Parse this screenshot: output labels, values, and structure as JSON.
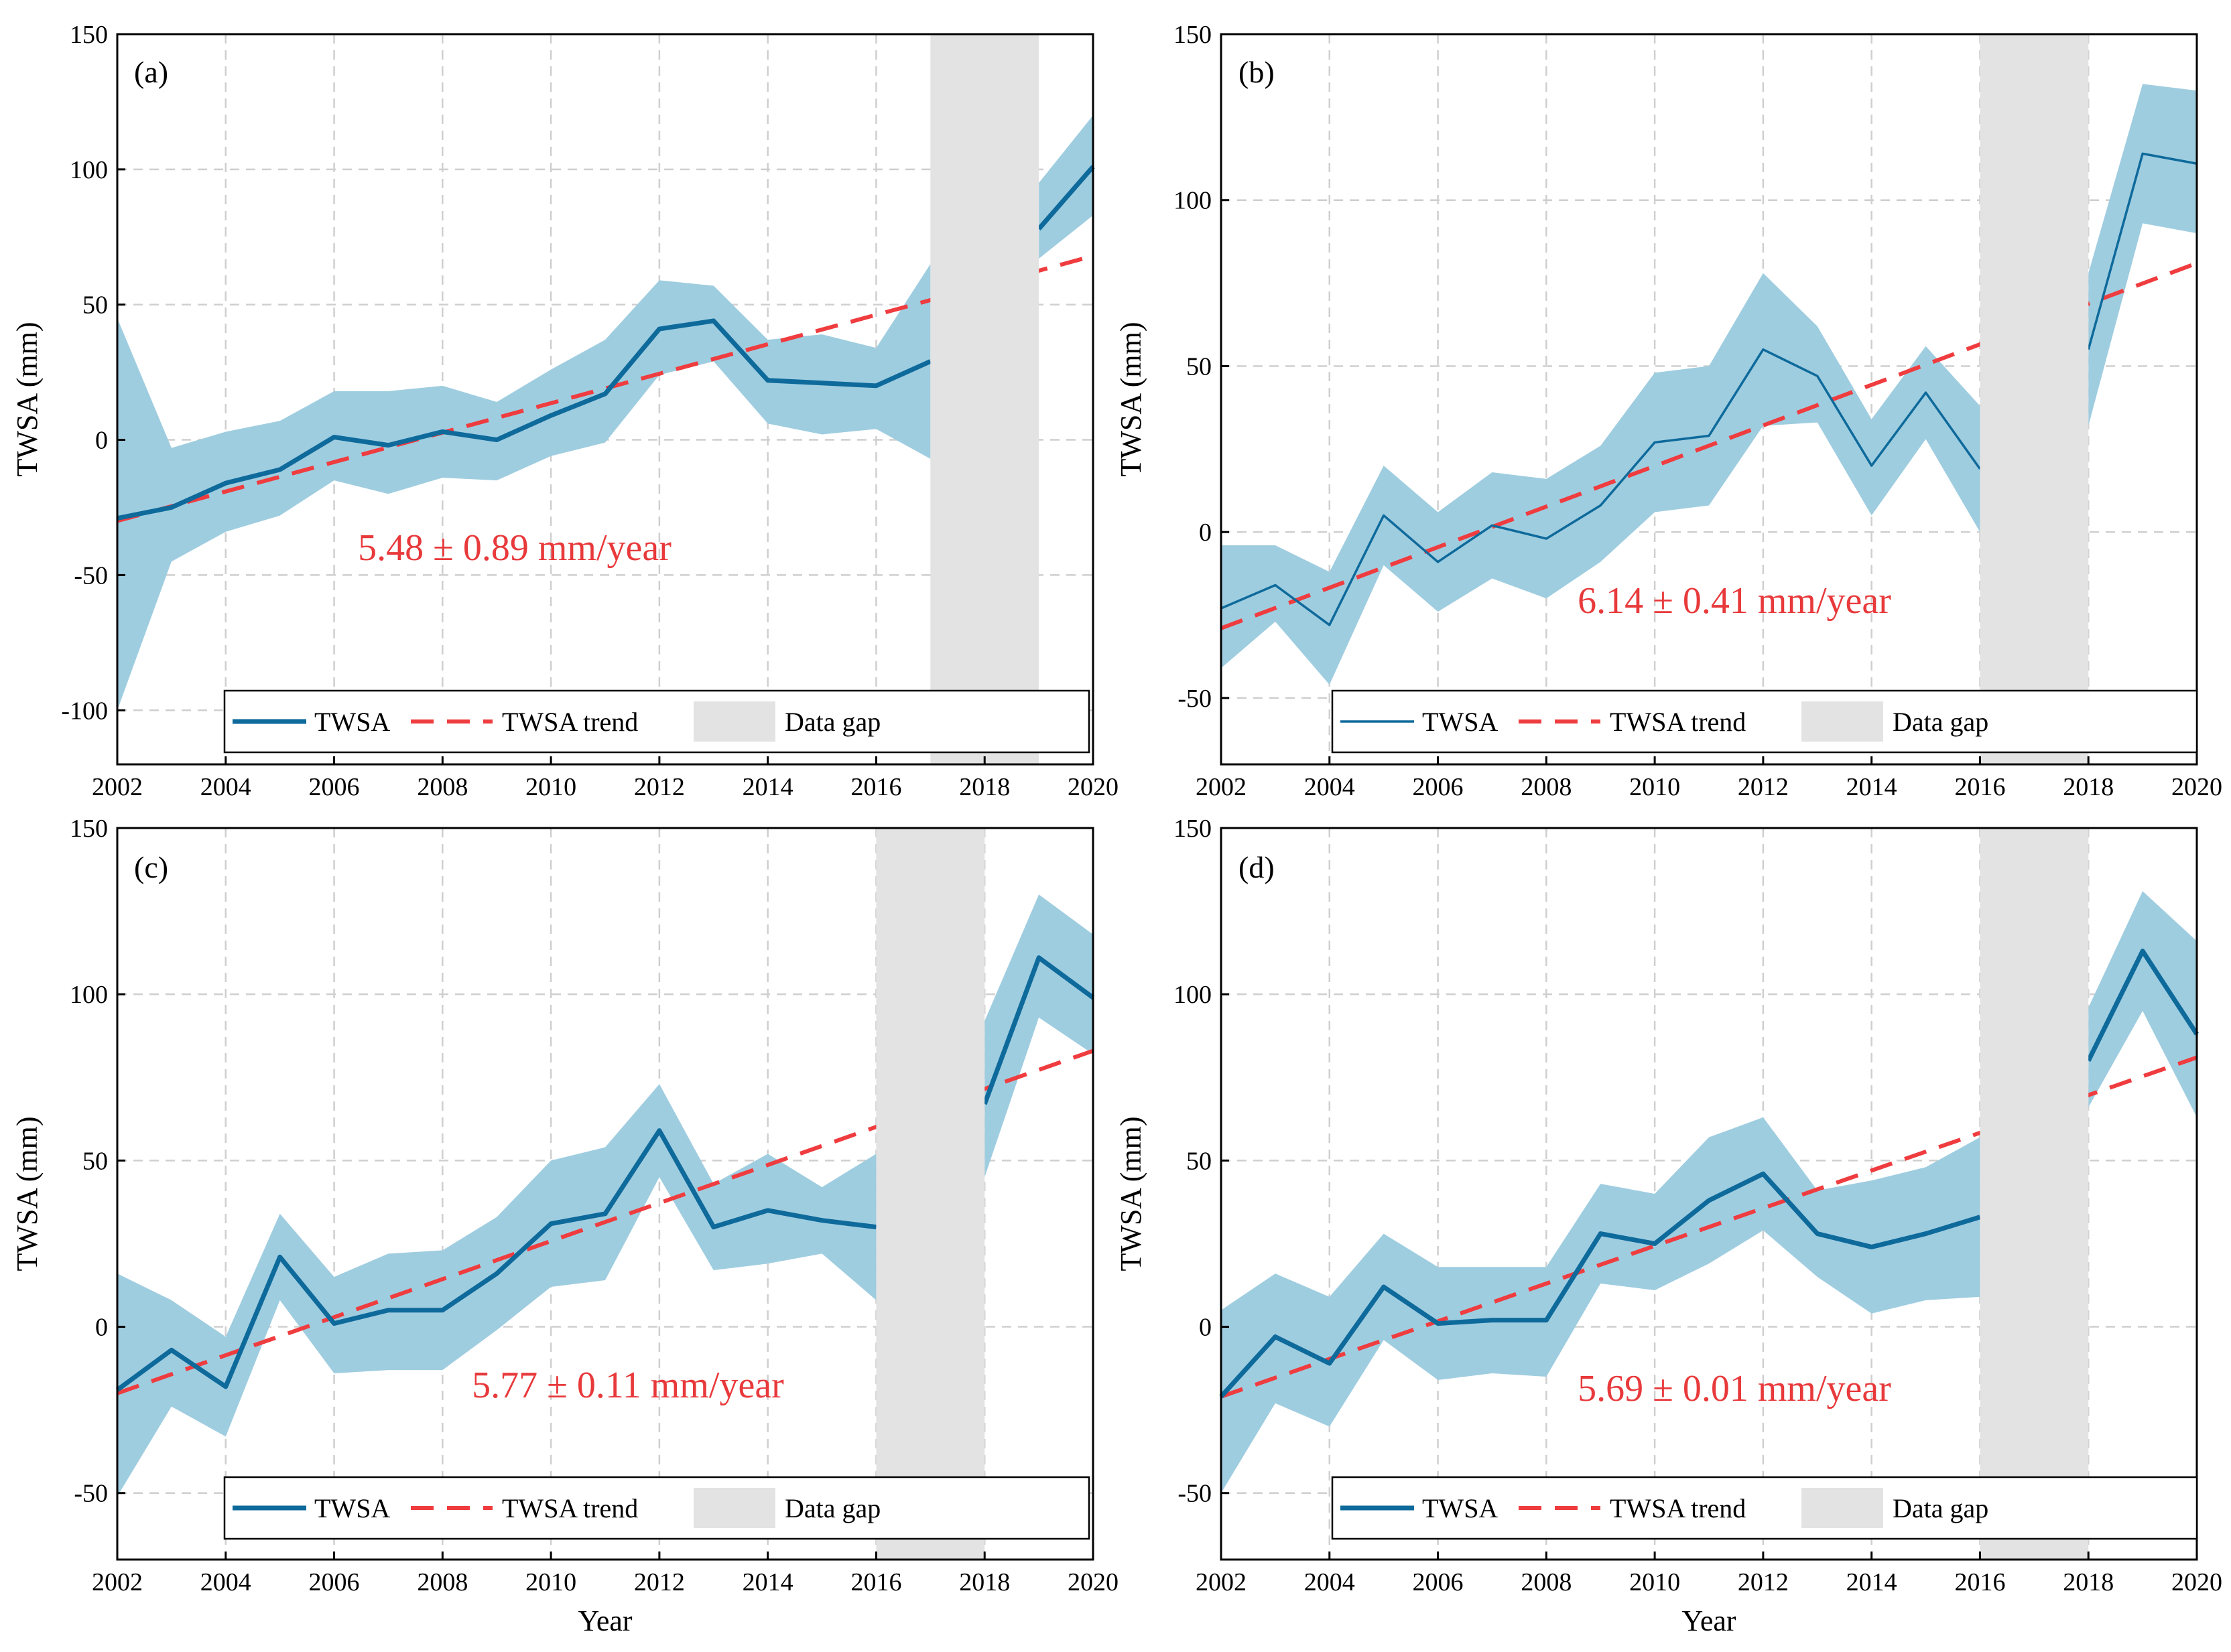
{
  "colors": {
    "line": "#0e6a9b",
    "band": "#9fcde0",
    "trend": "#ef3c3f",
    "gap": "#e3e3e3"
  },
  "x_axis_title": "Year",
  "y_axis_title": "TWSA (mm)",
  "legend": {
    "twsa": "TWSA",
    "trend": "TWSA trend",
    "gap": "Data gap"
  },
  "chart_data": [
    {
      "type": "line",
      "panel_label": "(a)",
      "trend_text": "5.48 ± 0.89 mm/year",
      "xlim": [
        2002,
        2020
      ],
      "ylim": [
        -120,
        150
      ],
      "xticks": [
        2002,
        2004,
        2006,
        2008,
        2010,
        2012,
        2014,
        2016,
        2018,
        2020
      ],
      "yticks": [
        -100,
        -50,
        0,
        50,
        100,
        150
      ],
      "gap": [
        2017,
        2019
      ],
      "line_width": "thick",
      "series": [
        {
          "name": "TWSA",
          "x": [
            2002,
            2003,
            2004,
            2005,
            2006,
            2007,
            2008,
            2009,
            2010,
            2011,
            2012,
            2013,
            2014,
            2015,
            2016,
            2017
          ],
          "y": [
            -29,
            -25,
            -16,
            -11,
            1,
            -2,
            3,
            0,
            9,
            17,
            41,
            44,
            22,
            21,
            20,
            29
          ]
        },
        {
          "name": "TWSA",
          "x": [
            2019,
            2020
          ],
          "y": [
            78,
            101
          ]
        }
      ],
      "band": {
        "upper": [
          {
            "x": [
              2002,
              2003,
              2004,
              2005,
              2006,
              2007,
              2008,
              2009,
              2010,
              2011,
              2012,
              2013,
              2014,
              2015,
              2016,
              2017
            ],
            "y": [
              45,
              -3,
              3,
              7,
              18,
              18,
              20,
              14,
              26,
              37,
              59,
              57,
              37,
              39,
              34,
              65
            ]
          },
          {
            "x": [
              2019,
              2020
            ],
            "y": [
              95,
              120
            ]
          }
        ],
        "lower": [
          {
            "x": [
              2002,
              2003,
              2004,
              2005,
              2006,
              2007,
              2008,
              2009,
              2010,
              2011,
              2012,
              2013,
              2014,
              2015,
              2016,
              2017
            ],
            "y": [
              -100,
              -45,
              -34,
              -28,
              -15,
              -20,
              -14,
              -15,
              -6,
              -1,
              24,
              29,
              6,
              2,
              4,
              -7
            ]
          },
          {
            "x": [
              2019,
              2020
            ],
            "y": [
              67,
              83
            ]
          }
        ]
      },
      "trend": {
        "x": [
          2002,
          2020
        ],
        "y": [
          -30,
          68
        ]
      }
    },
    {
      "type": "line",
      "panel_label": "(b)",
      "trend_text": "6.14 ± 0.41 mm/year",
      "xlim": [
        2002,
        2020
      ],
      "ylim": [
        -70,
        150
      ],
      "xticks": [
        2002,
        2004,
        2006,
        2008,
        2010,
        2012,
        2014,
        2016,
        2018,
        2020
      ],
      "yticks": [
        -50,
        0,
        50,
        100,
        150
      ],
      "gap": [
        2016,
        2018
      ],
      "line_width": "thin",
      "series": [
        {
          "name": "TWSA",
          "x": [
            2002,
            2003,
            2004,
            2005,
            2006,
            2007,
            2008,
            2009,
            2010,
            2011,
            2012,
            2013,
            2014,
            2015,
            2016
          ],
          "y": [
            -23,
            -16,
            -28,
            5,
            -9,
            2,
            -2,
            8,
            27,
            29,
            55,
            47,
            20,
            42,
            19
          ]
        },
        {
          "name": "TWSA",
          "x": [
            2018,
            2019,
            2020
          ],
          "y": [
            55,
            114,
            111
          ]
        }
      ],
      "band": {
        "upper": [
          {
            "x": [
              2002,
              2003,
              2004,
              2005,
              2006,
              2007,
              2008,
              2009,
              2010,
              2011,
              2012,
              2013,
              2014,
              2015,
              2016
            ],
            "y": [
              -4,
              -4,
              -12,
              20,
              6,
              18,
              16,
              26,
              48,
              50,
              78,
              62,
              34,
              56,
              38
            ]
          },
          {
            "x": [
              2018,
              2019,
              2020
            ],
            "y": [
              78,
              135,
              133
            ]
          }
        ],
        "lower": [
          {
            "x": [
              2002,
              2003,
              2004,
              2005,
              2006,
              2007,
              2008,
              2009,
              2010,
              2011,
              2012,
              2013,
              2014,
              2015,
              2016
            ],
            "y": [
              -41,
              -27,
              -46,
              -10,
              -24,
              -14,
              -20,
              -9,
              6,
              8,
              32,
              33,
              5,
              28,
              0
            ]
          },
          {
            "x": [
              2018,
              2019,
              2020
            ],
            "y": [
              32,
              93,
              90
            ]
          }
        ]
      },
      "trend": {
        "x": [
          2002,
          2020
        ],
        "y": [
          -29,
          81
        ]
      }
    },
    {
      "type": "line",
      "panel_label": "(c)",
      "trend_text": "5.77 ± 0.11 mm/year",
      "xlim": [
        2002,
        2020
      ],
      "ylim": [
        -70,
        150
      ],
      "xticks": [
        2002,
        2004,
        2006,
        2008,
        2010,
        2012,
        2014,
        2016,
        2018,
        2020
      ],
      "yticks": [
        -50,
        0,
        50,
        100,
        150
      ],
      "gap": [
        2016,
        2018
      ],
      "line_width": "thick",
      "series": [
        {
          "name": "TWSA",
          "x": [
            2002,
            2003,
            2004,
            2005,
            2006,
            2007,
            2008,
            2009,
            2010,
            2011,
            2012,
            2013,
            2014,
            2015,
            2016
          ],
          "y": [
            -19,
            -7,
            -18,
            21,
            1,
            5,
            5,
            16,
            31,
            34,
            59,
            30,
            35,
            32,
            30
          ]
        },
        {
          "name": "TWSA",
          "x": [
            2018,
            2019,
            2020
          ],
          "y": [
            67,
            111,
            99
          ]
        }
      ],
      "band": {
        "upper": [
          {
            "x": [
              2002,
              2003,
              2004,
              2005,
              2006,
              2007,
              2008,
              2009,
              2010,
              2011,
              2012,
              2013,
              2014,
              2015,
              2016
            ],
            "y": [
              16,
              8,
              -3,
              34,
              15,
              22,
              23,
              33,
              50,
              54,
              73,
              43,
              52,
              42,
              52
            ]
          },
          {
            "x": [
              2018,
              2019,
              2020
            ],
            "y": [
              92,
              130,
              118
            ]
          }
        ],
        "lower": [
          {
            "x": [
              2002,
              2003,
              2004,
              2005,
              2006,
              2007,
              2008,
              2009,
              2010,
              2011,
              2012,
              2013,
              2014,
              2015,
              2016
            ],
            "y": [
              -51,
              -24,
              -33,
              8,
              -14,
              -13,
              -13,
              -1,
              12,
              14,
              45,
              17,
              19,
              22,
              8
            ]
          },
          {
            "x": [
              2018,
              2019,
              2020
            ],
            "y": [
              45,
              93,
              82
            ]
          }
        ]
      },
      "trend": {
        "x": [
          2002,
          2020
        ],
        "y": [
          -20,
          83
        ]
      }
    },
    {
      "type": "line",
      "panel_label": "(d)",
      "trend_text": "5.69 ± 0.01 mm/year",
      "xlim": [
        2002,
        2020
      ],
      "ylim": [
        -70,
        150
      ],
      "xticks": [
        2002,
        2004,
        2006,
        2008,
        2010,
        2012,
        2014,
        2016,
        2018,
        2020
      ],
      "yticks": [
        -50,
        0,
        50,
        100,
        150
      ],
      "gap": [
        2016,
        2018
      ],
      "line_width": "thick",
      "series": [
        {
          "name": "TWSA",
          "x": [
            2002,
            2003,
            2004,
            2005,
            2006,
            2007,
            2008,
            2009,
            2010,
            2011,
            2012,
            2013,
            2014,
            2015,
            2016
          ],
          "y": [
            -21,
            -3,
            -11,
            12,
            1,
            2,
            2,
            28,
            25,
            38,
            46,
            28,
            24,
            28,
            33
          ]
        },
        {
          "name": "TWSA",
          "x": [
            2018,
            2019,
            2020
          ],
          "y": [
            80,
            113,
            88
          ]
        }
      ],
      "band": {
        "upper": [
          {
            "x": [
              2002,
              2003,
              2004,
              2005,
              2006,
              2007,
              2008,
              2009,
              2010,
              2011,
              2012,
              2013,
              2014,
              2015,
              2016
            ],
            "y": [
              5,
              16,
              9,
              28,
              18,
              18,
              18,
              43,
              40,
              57,
              63,
              41,
              44,
              48,
              57
            ]
          },
          {
            "x": [
              2018,
              2019,
              2020
            ],
            "y": [
              96,
              131,
              116
            ]
          }
        ],
        "lower": [
          {
            "x": [
              2002,
              2003,
              2004,
              2005,
              2006,
              2007,
              2008,
              2009,
              2010,
              2011,
              2012,
              2013,
              2014,
              2015,
              2016
            ],
            "y": [
              -50,
              -23,
              -30,
              -4,
              -16,
              -14,
              -15,
              13,
              11,
              19,
              29,
              15,
              4,
              8,
              9
            ]
          },
          {
            "x": [
              2018,
              2019,
              2020
            ],
            "y": [
              66,
              95,
              63
            ]
          }
        ]
      },
      "trend": {
        "x": [
          2002,
          2020
        ],
        "y": [
          -21,
          81
        ]
      }
    }
  ]
}
